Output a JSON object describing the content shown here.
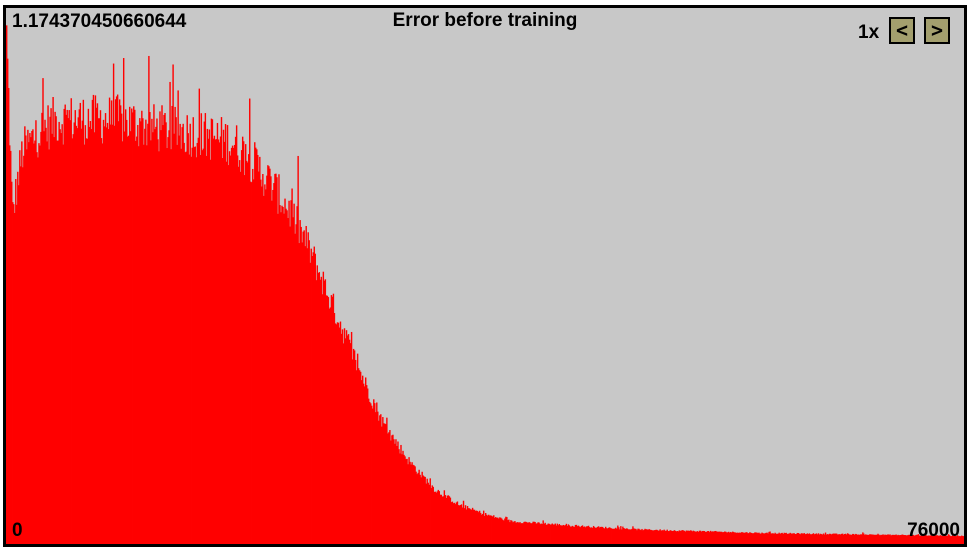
{
  "chart_data": {
    "type": "bar",
    "title": "Error before training",
    "ymax_label": "1.174370450660644",
    "xmin_label": "0",
    "xmax_label": "76000",
    "xlim": [
      0,
      76000
    ],
    "ylim": [
      0,
      1.174370450660644
    ],
    "bar_color": "#ff0000",
    "background_color": "#c8c8c8",
    "envelope": {
      "x": [
        0,
        500,
        1300,
        2500,
        4000,
        6000,
        9000,
        12000,
        15000,
        18000,
        19500,
        21000,
        22500,
        24000,
        25500,
        27000,
        28500,
        30000,
        32000,
        34000,
        36000,
        38000,
        40000,
        45000,
        50000,
        55000,
        60000,
        65000,
        70000,
        76000
      ],
      "y": [
        1.15,
        0.72,
        0.86,
        0.9,
        0.93,
        0.93,
        0.93,
        0.91,
        0.9,
        0.88,
        0.84,
        0.79,
        0.73,
        0.65,
        0.55,
        0.45,
        0.35,
        0.26,
        0.18,
        0.12,
        0.085,
        0.065,
        0.05,
        0.04,
        0.032,
        0.028,
        0.024,
        0.022,
        0.02,
        0.018
      ]
    },
    "grid": false,
    "legend": "none"
  },
  "controls": {
    "zoom_label": "1x",
    "prev_label": "<",
    "next_label": ">"
  }
}
